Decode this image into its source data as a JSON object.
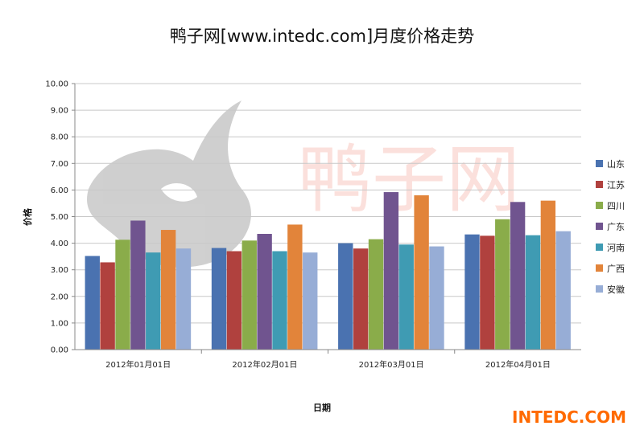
{
  "chart_data": {
    "type": "bar",
    "title": "鸭子网[www.intedc.com]月度价格走势",
    "xlabel": "日期",
    "ylabel": "价格",
    "categories": [
      "2012年01月01日",
      "2012年02月01日",
      "2012年03月01日",
      "2012年04月01日"
    ],
    "ylim": [
      0,
      10
    ],
    "yticks": [
      "0.00",
      "1.00",
      "2.00",
      "3.00",
      "4.00",
      "5.00",
      "6.00",
      "7.00",
      "8.00",
      "9.00",
      "10.00"
    ],
    "grid": true,
    "legend_position": "right",
    "series": [
      {
        "name": "山东",
        "color": "#4a72b0",
        "values": [
          3.52,
          3.82,
          4.0,
          4.33
        ]
      },
      {
        "name": "江苏",
        "color": "#b0413e",
        "values": [
          3.28,
          3.7,
          3.8,
          4.28
        ]
      },
      {
        "name": "四川",
        "color": "#8aac4a",
        "values": [
          4.13,
          4.1,
          4.15,
          4.9
        ]
      },
      {
        "name": "广东",
        "color": "#70548f",
        "values": [
          4.85,
          4.35,
          5.92,
          5.55
        ]
      },
      {
        "name": "河南",
        "color": "#3f9bb3",
        "values": [
          3.65,
          3.7,
          3.95,
          4.3
        ]
      },
      {
        "name": "广西",
        "color": "#e2843a",
        "values": [
          4.5,
          4.7,
          5.8,
          5.6
        ]
      },
      {
        "name": "安徽",
        "color": "#97add6",
        "values": [
          3.8,
          3.65,
          3.88,
          4.45
        ]
      }
    ]
  },
  "watermark": {
    "brand_text": "INTEDC.COM",
    "brand_dot_color": "#1f3d8c",
    "logo_text": "鸭子网"
  }
}
